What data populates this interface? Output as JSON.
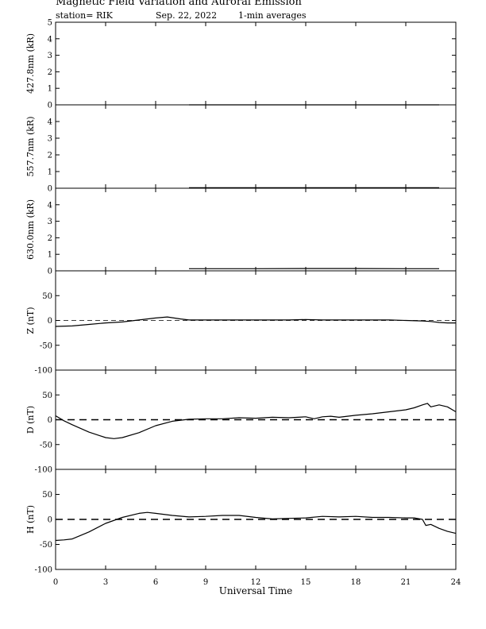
{
  "header": {
    "title": "Magnetic Field Variation and Auroral Emission",
    "station": "station= RIK",
    "date": "Sep. 22, 2022",
    "averaging": "1-min averages"
  },
  "chart_data": [
    {
      "type": "line",
      "ylabel": "427.8nm (kR)",
      "ylim": [
        0,
        5
      ],
      "yticks": [
        0,
        1,
        2,
        3,
        4,
        5
      ],
      "series": [
        {
          "x": [
            8,
            23
          ],
          "y": [
            0,
            0
          ]
        }
      ]
    },
    {
      "type": "line",
      "ylabel": "557.7nm (kR)",
      "ylim": [
        0,
        5
      ],
      "yticks": [
        0,
        1,
        2,
        3,
        4
      ],
      "series": [
        {
          "x": [
            8,
            23
          ],
          "y": [
            0.03,
            0.03
          ]
        }
      ]
    },
    {
      "type": "line",
      "ylabel": "630.0nm (kR)",
      "ylim": [
        0,
        5
      ],
      "yticks": [
        0,
        1,
        2,
        3,
        4
      ],
      "series": [
        {
          "x": [
            8,
            12,
            15,
            18,
            21,
            23
          ],
          "y": [
            0.13,
            0.13,
            0.14,
            0.14,
            0.13,
            0.13
          ]
        }
      ]
    },
    {
      "type": "line",
      "ylabel": "Z (nT)",
      "ylim": [
        -100,
        100
      ],
      "yticks": [
        -100,
        -50,
        0,
        50
      ],
      "reference_line": 0,
      "reference_style": "thin-dashed",
      "series": [
        {
          "x": [
            0,
            1,
            2,
            3,
            4,
            5,
            6,
            6.7,
            7.5,
            8,
            10,
            12,
            14,
            15,
            16,
            18,
            20,
            21,
            22,
            22.5,
            23,
            23.5,
            24
          ],
          "y": [
            -12,
            -11,
            -8,
            -5,
            -3,
            1,
            5,
            7,
            3,
            1,
            1,
            1,
            1,
            2,
            1,
            1,
            1,
            0,
            -1,
            -2,
            -4,
            -5,
            -5
          ]
        }
      ]
    },
    {
      "type": "line",
      "ylabel": "D (nT)",
      "ylim": [
        -100,
        100
      ],
      "yticks": [
        -100,
        -50,
        0,
        50
      ],
      "reference_line": 0,
      "reference_style": "dashed",
      "series": [
        {
          "x": [
            0,
            0.5,
            1,
            2,
            3,
            3.5,
            4,
            5,
            6,
            7,
            8,
            9,
            10,
            11,
            12,
            13,
            14,
            15,
            15.5,
            16,
            16.5,
            17,
            18,
            19,
            20,
            21,
            21.5,
            22,
            22.3,
            22.5,
            23,
            23.5,
            24
          ],
          "y": [
            8,
            -2,
            -10,
            -25,
            -36,
            -38,
            -36,
            -26,
            -12,
            -3,
            1,
            2,
            2,
            4,
            3,
            5,
            4,
            6,
            2,
            6,
            7,
            5,
            9,
            12,
            16,
            20,
            24,
            30,
            33,
            26,
            30,
            26,
            16
          ]
        }
      ]
    },
    {
      "type": "line",
      "ylabel": "H (nT)",
      "ylim": [
        -100,
        100
      ],
      "yticks": [
        -100,
        -50,
        0,
        50
      ],
      "reference_line": 0,
      "reference_style": "dashed",
      "series": [
        {
          "x": [
            0,
            0.5,
            1,
            2,
            3,
            4,
            5,
            5.5,
            6,
            7,
            8,
            9,
            10,
            11,
            12,
            13,
            14,
            15,
            16,
            17,
            18,
            19,
            20,
            21,
            21.5,
            22,
            22.2,
            22.5,
            23,
            23.5,
            24
          ],
          "y": [
            -42,
            -41,
            -39,
            -25,
            -8,
            4,
            12,
            14,
            12,
            8,
            5,
            6,
            8,
            8,
            4,
            1,
            2,
            3,
            6,
            5,
            6,
            4,
            4,
            3,
            3,
            0,
            -12,
            -10,
            -18,
            -24,
            -28
          ]
        }
      ]
    }
  ],
  "x_axis": {
    "label": "Universal Time",
    "xlim": [
      0,
      24
    ],
    "ticks": [
      0,
      3,
      6,
      9,
      12,
      15,
      18,
      21,
      24
    ],
    "tick_labels": [
      "0",
      "3",
      "6",
      "9",
      "12",
      "15",
      "18",
      "21",
      "24"
    ]
  }
}
